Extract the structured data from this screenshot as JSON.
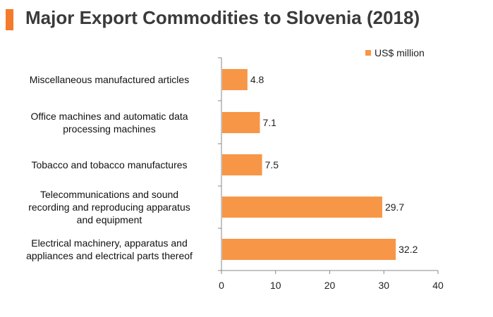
{
  "title": "Major Export Commodities to Slovenia (2018)",
  "chart_data": {
    "type": "bar",
    "orientation": "horizontal",
    "categories": [
      "Miscellaneous manufactured articles",
      "Office machines and automatic data processing machines",
      "Tobacco and tobacco manufactures",
      "Telecommunications and sound recording and reproducing apparatus and equipment",
      "Electrical machinery, apparatus and appliances and electrical parts thereof"
    ],
    "category_lines": [
      [
        "Miscellaneous manufactured articles"
      ],
      [
        "Office machines and automatic data",
        "processing machines"
      ],
      [
        "Tobacco and tobacco manufactures"
      ],
      [
        "Telecommunications and sound",
        "recording and reproducing apparatus",
        "and equipment"
      ],
      [
        "Electrical machinery, apparatus and",
        "appliances and electrical parts thereof"
      ]
    ],
    "series": [
      {
        "name": "US$ million",
        "values": [
          4.8,
          7.1,
          7.5,
          29.7,
          32.2
        ]
      }
    ],
    "value_labels": [
      "4.8",
      "7.1",
      "7.5",
      "29.7",
      "32.2"
    ],
    "xlim": [
      0,
      40
    ],
    "xticks": [
      0,
      10,
      20,
      30,
      40
    ],
    "legend_position": "top-right",
    "grid": false
  },
  "colors": {
    "bar": "#f79646",
    "title_accent": "#f47a2c",
    "axis": "#888888"
  }
}
